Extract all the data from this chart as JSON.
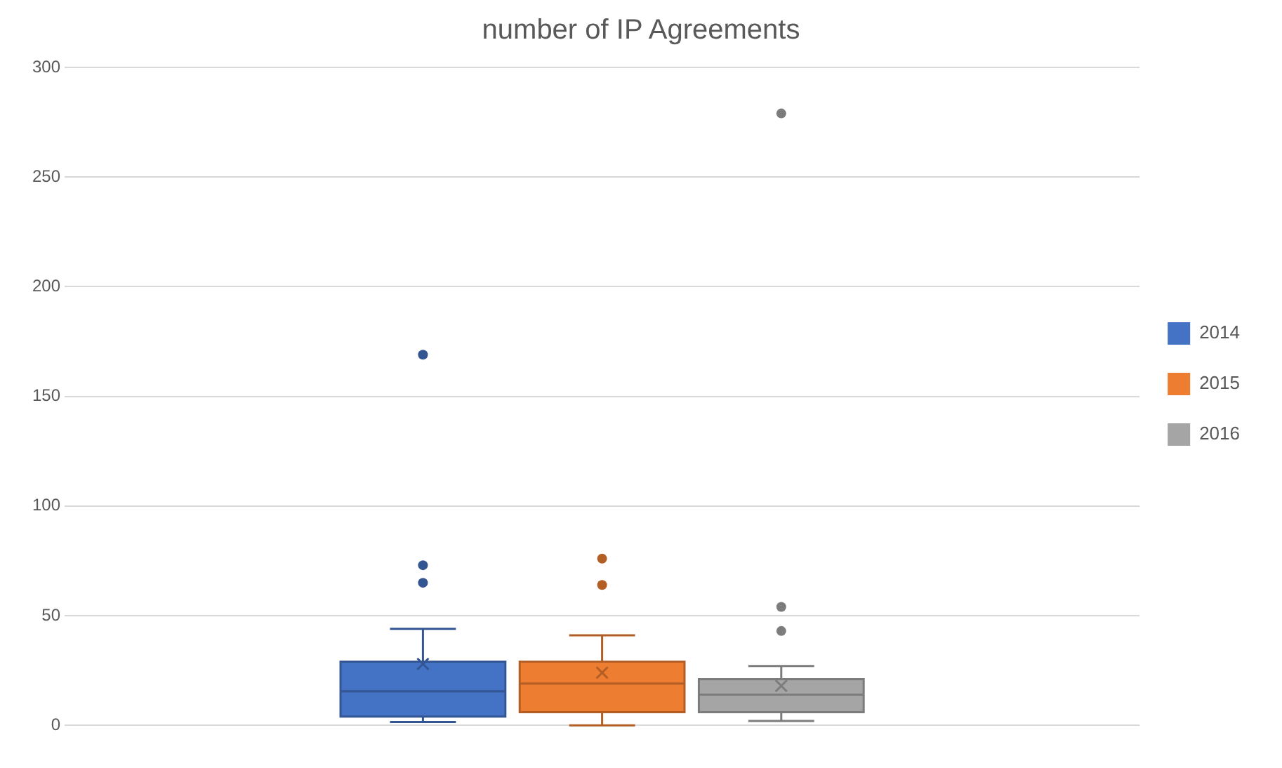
{
  "chart_data": {
    "type": "box",
    "title": "number of IP Agreements",
    "categories": [
      null
    ],
    "series": [
      {
        "name": "2014",
        "color": "#4472c4",
        "boxes": [
          {
            "low": 1.5,
            "q1": 4,
            "median": 15.5,
            "q3": 29,
            "high": 44,
            "mean": 28,
            "outliers": [
              65,
              73,
              169
            ]
          }
        ]
      },
      {
        "name": "2015",
        "color": "#ed7d31",
        "boxes": [
          {
            "low": 0,
            "q1": 6,
            "median": 19,
            "q3": 29,
            "high": 41,
            "mean": 24,
            "outliers": [
              64,
              76
            ]
          }
        ]
      },
      {
        "name": "2016",
        "color": "#a5a5a5",
        "boxes": [
          {
            "low": 2,
            "q1": 6,
            "median": 14,
            "q3": 21,
            "high": 27,
            "mean": 18,
            "outliers": [
              43,
              54,
              279
            ]
          }
        ]
      }
    ],
    "ylim": [
      0,
      300
    ],
    "yticks": [
      0,
      50,
      100,
      150,
      200,
      250,
      300
    ],
    "grid": "y",
    "legend": "right"
  }
}
